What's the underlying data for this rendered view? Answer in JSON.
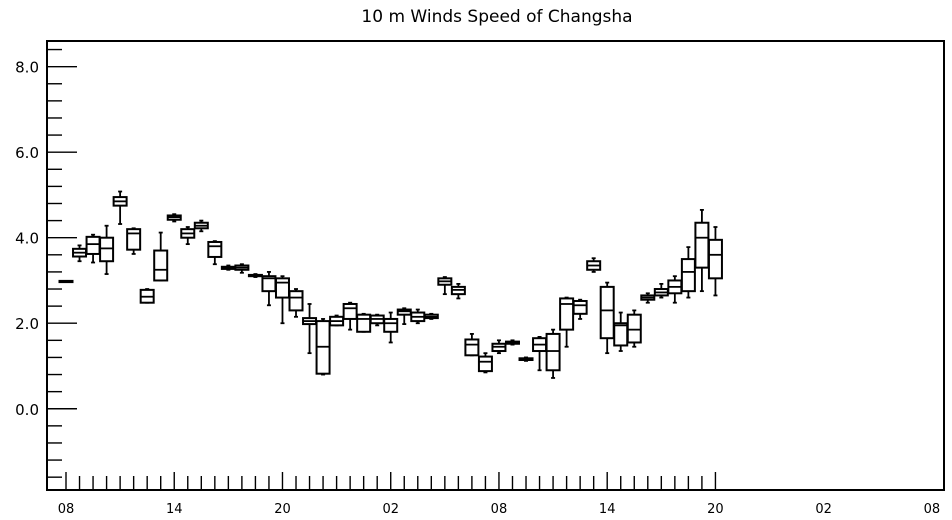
{
  "chart_data": {
    "type": "box",
    "title": "10 m Winds Speed of Changsha",
    "xlabel": "",
    "ylabel": "",
    "ylim": [
      -1.9,
      8.6
    ],
    "yticks": [
      0.0,
      2.0,
      4.0,
      6.0,
      8.0
    ],
    "ytick_labels": [
      "0.0",
      "2.0",
      "4.0",
      "6.0",
      "8.0"
    ],
    "xtick_labels": [
      {
        "index": 0,
        "label": "08"
      },
      {
        "index": 8,
        "label": "14"
      },
      {
        "index": 16,
        "label": "20"
      },
      {
        "index": 24,
        "label": "02"
      },
      {
        "index": 32,
        "label": "08"
      },
      {
        "index": 40,
        "label": "14"
      },
      {
        "index": 48,
        "label": "20"
      },
      {
        "index": 56,
        "label": "02"
      },
      {
        "index": 64,
        "label": "08"
      }
    ],
    "grid": false,
    "boxes": [
      {
        "index": 0,
        "min": 2.99,
        "q1": 2.99,
        "median": 2.99,
        "q3": 2.99,
        "max": 2.99
      },
      {
        "index": 1,
        "min": 3.45,
        "q1": 3.56,
        "median": 3.65,
        "q3": 3.74,
        "max": 3.82
      },
      {
        "index": 2,
        "min": 3.42,
        "q1": 3.62,
        "median": 3.85,
        "q3": 4.02,
        "max": 4.07
      },
      {
        "index": 3,
        "min": 3.15,
        "q1": 3.45,
        "median": 3.75,
        "q3": 4.0,
        "max": 4.28
      },
      {
        "index": 4,
        "min": 4.32,
        "q1": 4.75,
        "median": 4.85,
        "q3": 4.95,
        "max": 5.08
      },
      {
        "index": 5,
        "min": 3.62,
        "q1": 3.72,
        "median": 4.1,
        "q3": 4.2,
        "max": 4.22
      },
      {
        "index": 6,
        "min": 2.48,
        "q1": 2.48,
        "median": 2.62,
        "q3": 2.78,
        "max": 2.8
      },
      {
        "index": 7,
        "min": 3.0,
        "q1": 3.0,
        "median": 3.25,
        "q3": 3.7,
        "max": 4.12
      },
      {
        "index": 8,
        "min": 4.38,
        "q1": 4.42,
        "median": 4.48,
        "q3": 4.52,
        "max": 4.55
      },
      {
        "index": 9,
        "min": 3.85,
        "q1": 4.0,
        "median": 4.1,
        "q3": 4.2,
        "max": 4.25
      },
      {
        "index": 10,
        "min": 4.15,
        "q1": 4.22,
        "median": 4.28,
        "q3": 4.35,
        "max": 4.4
      },
      {
        "index": 11,
        "min": 3.38,
        "q1": 3.55,
        "median": 3.8,
        "q3": 3.9,
        "max": 3.92
      },
      {
        "index": 12,
        "min": 3.25,
        "q1": 3.27,
        "median": 3.3,
        "q3": 3.32,
        "max": 3.35
      },
      {
        "index": 13,
        "min": 3.18,
        "q1": 3.25,
        "median": 3.3,
        "q3": 3.35,
        "max": 3.38
      },
      {
        "index": 14,
        "min": 3.08,
        "q1": 3.1,
        "median": 3.12,
        "q3": 3.13,
        "max": 3.15
      },
      {
        "index": 15,
        "min": 2.42,
        "q1": 2.75,
        "median": 3.05,
        "q3": 3.1,
        "max": 3.2
      },
      {
        "index": 16,
        "min": 2.0,
        "q1": 2.6,
        "median": 2.95,
        "q3": 3.05,
        "max": 3.1
      },
      {
        "index": 17,
        "min": 2.15,
        "q1": 2.3,
        "median": 2.6,
        "q3": 2.75,
        "max": 2.8
      },
      {
        "index": 18,
        "min": 1.3,
        "q1": 1.98,
        "median": 2.05,
        "q3": 2.12,
        "max": 2.45
      },
      {
        "index": 19,
        "min": 0.8,
        "q1": 0.82,
        "median": 1.45,
        "q3": 2.05,
        "max": 2.1
      },
      {
        "index": 20,
        "min": 1.95,
        "q1": 1.95,
        "median": 2.05,
        "q3": 2.15,
        "max": 2.18
      },
      {
        "index": 21,
        "min": 1.85,
        "q1": 2.1,
        "median": 2.35,
        "q3": 2.45,
        "max": 2.48
      },
      {
        "index": 22,
        "min": 1.8,
        "q1": 1.8,
        "median": 2.1,
        "q3": 2.2,
        "max": 2.22
      },
      {
        "index": 23,
        "min": 1.95,
        "q1": 2.0,
        "median": 2.1,
        "q3": 2.18,
        "max": 2.2
      },
      {
        "index": 24,
        "min": 1.55,
        "q1": 1.8,
        "median": 2.0,
        "q3": 2.1,
        "max": 2.25
      },
      {
        "index": 25,
        "min": 1.98,
        "q1": 2.2,
        "median": 2.28,
        "q3": 2.32,
        "max": 2.35
      },
      {
        "index": 26,
        "min": 2.0,
        "q1": 2.05,
        "median": 2.15,
        "q3": 2.25,
        "max": 2.32
      },
      {
        "index": 27,
        "min": 2.1,
        "q1": 2.12,
        "median": 2.15,
        "q3": 2.2,
        "max": 2.22
      },
      {
        "index": 28,
        "min": 2.68,
        "q1": 2.9,
        "median": 2.98,
        "q3": 3.05,
        "max": 3.08
      },
      {
        "index": 29,
        "min": 2.58,
        "q1": 2.68,
        "median": 2.78,
        "q3": 2.85,
        "max": 2.92
      },
      {
        "index": 30,
        "min": 1.25,
        "q1": 1.25,
        "median": 1.5,
        "q3": 1.62,
        "max": 1.75
      },
      {
        "index": 31,
        "min": 0.85,
        "q1": 0.88,
        "median": 1.1,
        "q3": 1.22,
        "max": 1.3
      },
      {
        "index": 32,
        "min": 1.3,
        "q1": 1.35,
        "median": 1.45,
        "q3": 1.52,
        "max": 1.6
      },
      {
        "index": 33,
        "min": 1.5,
        "q1": 1.52,
        "median": 1.55,
        "q3": 1.57,
        "max": 1.6
      },
      {
        "index": 34,
        "min": 1.12,
        "q1": 1.14,
        "median": 1.16,
        "q3": 1.18,
        "max": 1.2
      },
      {
        "index": 35,
        "min": 0.9,
        "q1": 1.35,
        "median": 1.5,
        "q3": 1.65,
        "max": 1.68
      },
      {
        "index": 36,
        "min": 0.72,
        "q1": 0.9,
        "median": 1.35,
        "q3": 1.75,
        "max": 1.85
      },
      {
        "index": 37,
        "min": 1.45,
        "q1": 1.85,
        "median": 2.45,
        "q3": 2.58,
        "max": 2.6
      },
      {
        "index": 38,
        "min": 2.1,
        "q1": 2.22,
        "median": 2.42,
        "q3": 2.52,
        "max": 2.55
      },
      {
        "index": 39,
        "min": 3.2,
        "q1": 3.25,
        "median": 3.35,
        "q3": 3.45,
        "max": 3.52
      },
      {
        "index": 40,
        "min": 1.3,
        "q1": 1.65,
        "median": 2.3,
        "q3": 2.85,
        "max": 2.95
      },
      {
        "index": 41,
        "min": 1.35,
        "q1": 1.48,
        "median": 1.95,
        "q3": 2.0,
        "max": 2.25
      },
      {
        "index": 42,
        "min": 1.45,
        "q1": 1.55,
        "median": 1.85,
        "q3": 2.2,
        "max": 2.3
      },
      {
        "index": 43,
        "min": 2.48,
        "q1": 2.55,
        "median": 2.6,
        "q3": 2.65,
        "max": 2.7
      },
      {
        "index": 44,
        "min": 2.6,
        "q1": 2.65,
        "median": 2.72,
        "q3": 2.8,
        "max": 2.92
      },
      {
        "index": 45,
        "min": 2.48,
        "q1": 2.7,
        "median": 2.85,
        "q3": 3.0,
        "max": 3.1
      },
      {
        "index": 46,
        "min": 2.6,
        "q1": 2.75,
        "median": 3.2,
        "q3": 3.5,
        "max": 3.78
      },
      {
        "index": 47,
        "min": 2.75,
        "q1": 3.3,
        "median": 4.0,
        "q3": 4.35,
        "max": 4.65
      },
      {
        "index": 48,
        "min": 2.65,
        "q1": 3.05,
        "median": 3.6,
        "q3": 3.95,
        "max": 4.25
      }
    ]
  }
}
